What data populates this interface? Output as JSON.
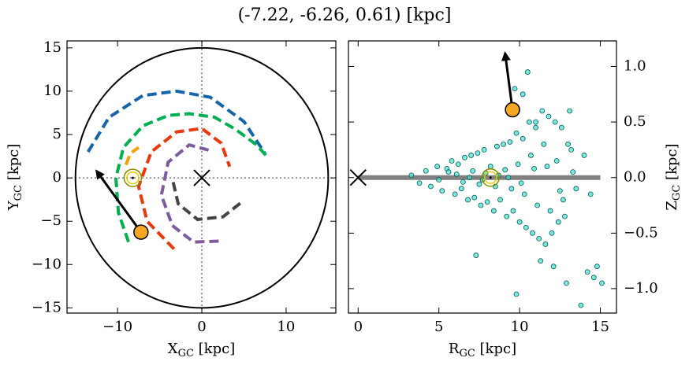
{
  "title": "(-7.22, -6.26, 0.61) [kpc]",
  "chart_data": [
    {
      "type": "line",
      "xlabel": {
        "main": "X",
        "sub": "GC",
        "unit": " [kpc]"
      },
      "ylabel": {
        "main": "Y",
        "sub": "GC",
        "unit": " [kpc]"
      },
      "xlim": [
        -16,
        15.9
      ],
      "ylim": [
        -15.6,
        15.8
      ],
      "xticks": [
        {
          "value": -10,
          "label": "−10"
        },
        0,
        10
      ],
      "yticks": [
        {
          "value": -15,
          "label": "−15"
        },
        {
          "value": -10,
          "label": "−10"
        },
        {
          "value": -5,
          "label": "−5"
        },
        0,
        5,
        10,
        15
      ],
      "boundary_radius": 15,
      "center": [
        0,
        0
      ],
      "sun": [
        -8.2,
        0
      ],
      "star": {
        "x": -7.22,
        "y": -6.26,
        "color": "#f5a623"
      },
      "arrow_to": [
        -12.5,
        0.8
      ],
      "series": [
        {
          "color": "#1565a8",
          "x": [
            -13.5,
            -11,
            -7,
            -3,
            1,
            5,
            7.5
          ],
          "y": [
            3,
            7,
            9.5,
            10,
            9.3,
            6.5,
            2.8
          ]
        },
        {
          "color": "#00b050",
          "x": [
            -8.7,
            -9.9,
            -10.2,
            -9.3,
            -7,
            -4,
            -1.5,
            1.5,
            4,
            6.5,
            7.7
          ],
          "y": [
            -7.4,
            -4,
            0,
            3.5,
            6,
            7.2,
            7.4,
            7,
            5.6,
            3.8,
            2.5
          ]
        },
        {
          "color": "#f5a000",
          "x": [
            -9,
            -8.5,
            -7.5
          ],
          "y": [
            1.5,
            2.8,
            3.5
          ]
        },
        {
          "color": "#e8380d",
          "x": [
            -3.3,
            -6.5,
            -7.5,
            -6,
            -3,
            0,
            2.3,
            3.3
          ],
          "y": [
            -8.2,
            -5,
            -1,
            3,
            5.3,
            5.7,
            4,
            1.3
          ]
        },
        {
          "color": "#7e5b9e",
          "x": [
            2,
            -1,
            -3.5,
            -4.8,
            -4,
            -1.5,
            0.8
          ],
          "y": [
            -7.3,
            -7.4,
            -5.5,
            -2,
            1.8,
            3.8,
            3.2
          ]
        },
        {
          "color": "#444444",
          "x": [
            -3.4,
            -2.8,
            -0.5,
            2.5,
            4.6
          ],
          "y": [
            -0.5,
            -3,
            -4.8,
            -4.5,
            -2.9
          ]
        }
      ]
    },
    {
      "type": "scatter",
      "xlabel": {
        "main": "R",
        "sub": "GC",
        "unit": " [kpc]"
      },
      "ylabel": {
        "main": "Z",
        "sub": "GC",
        "unit": " [kpc]"
      },
      "xlim": [
        -0.6,
        16
      ],
      "ylim": [
        -1.22,
        1.23
      ],
      "xticks": [
        0,
        5,
        10,
        15
      ],
      "yticks": [
        {
          "value": -1.0,
          "label": "−1.0"
        },
        {
          "value": -0.5,
          "label": "−0.5"
        },
        {
          "value": 0,
          "label": "0.0"
        },
        0.5,
        {
          "value": 1.0,
          "label": "1.0"
        }
      ],
      "center": [
        0,
        0
      ],
      "sun": [
        8.2,
        0
      ],
      "disk": [
        0,
        15
      ],
      "star": {
        "x": 9.56,
        "y": 0.61,
        "color": "#f5a623"
      },
      "arrow_to": [
        9.1,
        1.12
      ],
      "color": "#40e0d0",
      "x": [
        3.3,
        3.8,
        4.2,
        4.5,
        4.9,
        5.2,
        5.5,
        5.8,
        6.0,
        6.2,
        6.4,
        6.6,
        6.8,
        7.0,
        7.2,
        7.4,
        7.6,
        7.8,
        8.0,
        8.2,
        8.4,
        8.6,
        8.8,
        9.0,
        9.2,
        9.4,
        9.6,
        9.8,
        10.0,
        10.2,
        10.4,
        10.6,
        10.8,
        11.0,
        11.2,
        11.4,
        11.6,
        11.8,
        12.0,
        12.2,
        12.4,
        12.6,
        12.8,
        13.0,
        5.0,
        5.6,
        6.1,
        6.5,
        7.1,
        7.5,
        7.9,
        8.5,
        9.1,
        9.5,
        9.9,
        10.3,
        10.7,
        11.1,
        11.5,
        11.9,
        12.3,
        12.7,
        13.2,
        13.5,
        14.0,
        14.4,
        6.9,
        7.7,
        8.7,
        9.3,
        10.1,
        10.9,
        11.7,
        12.5,
        13.3,
        9.7,
        10.5,
        11.3,
        12.1,
        13.1,
        14.2,
        14.6,
        15.1,
        14.8,
        13.8,
        9.8,
        10.2,
        7.3,
        11.0,
        12.9
      ],
      "y": [
        0.02,
        -0.05,
        0.06,
        -0.08,
        0.1,
        -0.12,
        0.08,
        0.15,
        -0.15,
        0.12,
        -0.1,
        0.18,
        -0.2,
        0.2,
        -0.18,
        0.22,
        -0.25,
        0.25,
        -0.22,
        0.1,
        -0.3,
        0.28,
        -0.2,
        0.3,
        -0.35,
        0.32,
        -0.3,
        0.4,
        -0.4,
        0.35,
        -0.45,
        0.5,
        -0.5,
        0.45,
        -0.55,
        0.6,
        -0.6,
        0.55,
        -0.5,
        0.5,
        -0.4,
        0.45,
        -0.35,
        0.3,
        -0.02,
        0.05,
        0.03,
        -0.04,
        0.06,
        -0.06,
        0.04,
        -0.08,
        0.07,
        -0.1,
        0.12,
        -0.15,
        0.2,
        -0.25,
        0.3,
        -0.3,
        0.15,
        -0.2,
        0.25,
        -0.1,
        0.2,
        -0.15,
        0.0,
        -0.02,
        0.02,
        0.0,
        -0.05,
        0.08,
        0.1,
        -0.12,
        0.05,
        0.8,
        0.95,
        -0.75,
        -0.8,
        0.6,
        -0.85,
        -0.9,
        -0.95,
        -0.8,
        -1.15,
        -1.05,
        0.75,
        -0.7,
        0.5,
        -0.95
      ]
    }
  ]
}
